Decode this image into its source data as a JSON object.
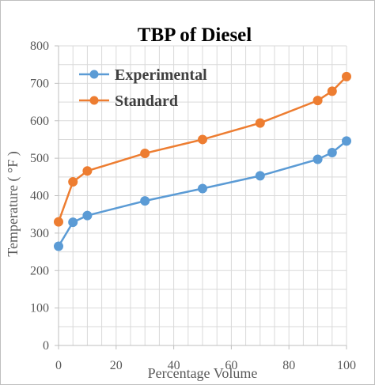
{
  "chart_data": {
    "type": "line",
    "title": "TBP of Diesel",
    "xlabel": "Percentage Volume",
    "ylabel": "Temperature ( °F )",
    "xlim": [
      0,
      100
    ],
    "ylim": [
      0,
      800
    ],
    "x_ticks": [
      "0",
      "20",
      "40",
      "60",
      "80",
      "100"
    ],
    "y_ticks": [
      "0",
      "100",
      "200",
      "300",
      "400",
      "500",
      "600",
      "700",
      "800"
    ],
    "grid": true,
    "legend_position": "top-left",
    "series": [
      {
        "name": "Experimental",
        "color": "#5b9bd5",
        "x": [
          0,
          5,
          10,
          30,
          50,
          70,
          90,
          95,
          100
        ],
        "y": [
          265,
          329,
          347,
          386,
          419,
          453,
          497,
          515,
          546
        ]
      },
      {
        "name": "Standard",
        "color": "#ed7d31",
        "x": [
          0,
          5,
          10,
          30,
          50,
          70,
          90,
          95,
          100
        ],
        "y": [
          330,
          437,
          466,
          513,
          550,
          594,
          654,
          679,
          718
        ]
      }
    ]
  }
}
